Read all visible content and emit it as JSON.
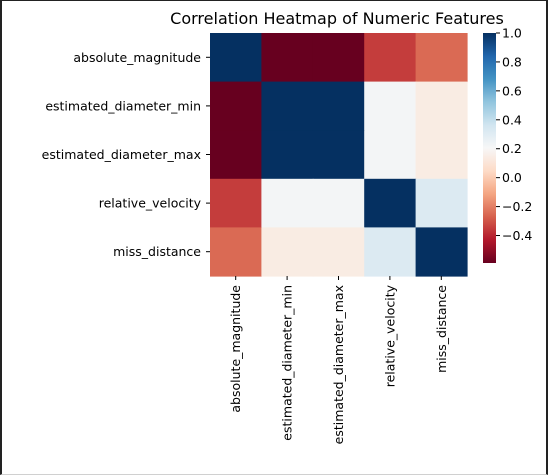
{
  "chart_data": {
    "type": "heatmap",
    "title": "Correlation Heatmap of Numeric Features",
    "xlabel": "",
    "ylabel": "",
    "rows": [
      "absolute_magnitude",
      "estimated_diameter_min",
      "estimated_diameter_max",
      "relative_velocity",
      "miss_distance"
    ],
    "columns": [
      "absolute_magnitude",
      "estimated_diameter_min",
      "estimated_diameter_max",
      "relative_velocity",
      "miss_distance"
    ],
    "values": [
      [
        1.0,
        -0.59,
        -0.59,
        -0.35,
        -0.25
      ],
      [
        -0.59,
        1.0,
        1.0,
        0.22,
        0.14
      ],
      [
        -0.59,
        1.0,
        1.0,
        0.22,
        0.14
      ],
      [
        -0.35,
        0.22,
        0.22,
        1.0,
        0.32
      ],
      [
        -0.25,
        0.14,
        0.14,
        0.32,
        1.0
      ]
    ],
    "colormap": "RdBu",
    "vmin": -0.59,
    "vmax": 1.0,
    "colorbar_ticks": [
      1.0,
      0.8,
      0.6,
      0.4,
      0.2,
      0.0,
      -0.2,
      -0.4
    ],
    "colorbar_tick_labels": [
      "1.0",
      "0.8",
      "0.6",
      "0.4",
      "0.2",
      "0.0",
      "−0.2",
      "−0.4"
    ]
  }
}
